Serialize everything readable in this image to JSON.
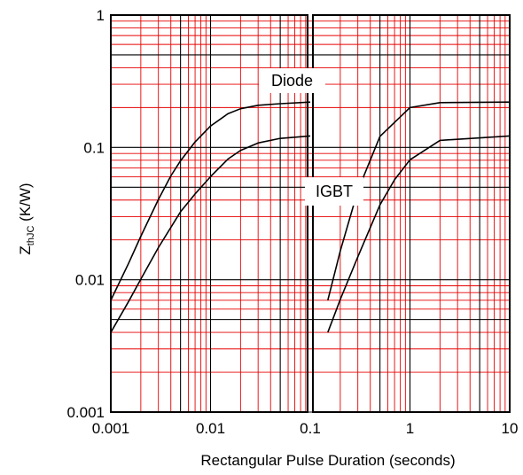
{
  "chart_data": {
    "type": "line",
    "title": "",
    "xlabel": "Rectangular Pulse Duration (seconds)",
    "ylabel": {
      "main": "Z",
      "subscript": "thJC",
      "unit": " (K/W)"
    },
    "x_scale": "log",
    "y_scale": "log",
    "xlim": [
      0.001,
      10
    ],
    "ylim": [
      0.001,
      1
    ],
    "x_ticks": [
      "0.001",
      "0.01",
      "0.1",
      "1",
      "10"
    ],
    "y_ticks": [
      "0.001",
      "0.01",
      "0.1",
      "1"
    ],
    "grid": true,
    "major_grid_color": "#000000",
    "minor_grid_color": "#e60000",
    "line_color": "#000000",
    "series": [
      {
        "name": "Diode",
        "x": [
          0.001,
          0.0015,
          0.002,
          0.003,
          0.004,
          0.005,
          0.007,
          0.01,
          0.015,
          0.02,
          0.03,
          0.05,
          0.1,
          0.15,
          0.2,
          0.3,
          0.5,
          1,
          2,
          10
        ],
        "y": [
          0.007,
          0.0132,
          0.0213,
          0.0404,
          0.0609,
          0.0792,
          0.11,
          0.145,
          0.18,
          0.196,
          0.208,
          0.214,
          0.22,
          0.007,
          0.0165,
          0.0472,
          0.121,
          0.2,
          0.218,
          0.22
        ],
        "segments": [
          [
            0,
            12
          ],
          [
            13,
            19
          ]
        ]
      },
      {
        "name": "IGBT",
        "x": [
          0.001,
          0.0015,
          0.002,
          0.003,
          0.005,
          0.007,
          0.01,
          0.015,
          0.02,
          0.03,
          0.05,
          0.1,
          0.15,
          0.2,
          0.3,
          0.5,
          0.7,
          1,
          2,
          10
        ],
        "y": [
          0.004,
          0.0068,
          0.0101,
          0.0175,
          0.0326,
          0.0445,
          0.0601,
          0.0818,
          0.0949,
          0.108,
          0.117,
          0.122,
          0.004,
          0.0071,
          0.0149,
          0.0368,
          0.0569,
          0.0806,
          0.113,
          0.122
        ],
        "segments": [
          [
            0,
            11
          ],
          [
            12,
            19
          ]
        ]
      }
    ],
    "annotations": [
      {
        "text": "Diode"
      },
      {
        "text": "IGBT"
      }
    ]
  }
}
